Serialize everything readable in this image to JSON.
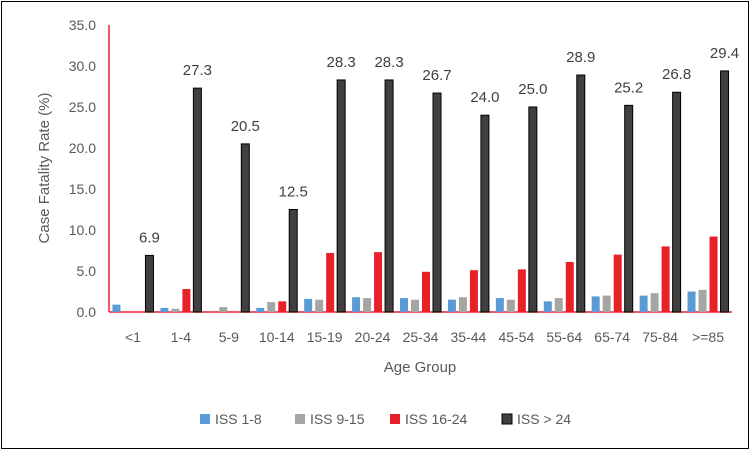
{
  "chart_data": {
    "type": "bar",
    "title": "",
    "xlabel": "Age Group",
    "ylabel": "Case Fatality Rate (%)",
    "ylim": [
      0,
      35
    ],
    "yticks": [
      "0.0",
      "5.0",
      "10.0",
      "15.0",
      "20.0",
      "25.0",
      "30.0",
      "35.0"
    ],
    "grid": false,
    "legend_position": "bottom",
    "categories": [
      "<1",
      "1-4",
      "5-9",
      "10-14",
      "15-19",
      "20-24",
      "25-34",
      "35-44",
      "45-54",
      "55-64",
      "65-74",
      "75-84",
      ">=85"
    ],
    "series": [
      {
        "name": "ISS 1-8",
        "color": "#5B9BD5",
        "values": [
          0.9,
          0.5,
          0.0,
          0.5,
          1.6,
          1.8,
          1.7,
          1.5,
          1.7,
          1.3,
          1.9,
          2.0,
          2.5
        ]
      },
      {
        "name": "ISS 9-15",
        "color": "#A5A5A5",
        "values": [
          0.0,
          0.4,
          0.6,
          1.2,
          1.5,
          1.7,
          1.5,
          1.8,
          1.5,
          1.7,
          2.0,
          2.3,
          2.7
        ]
      },
      {
        "name": "ISS 16-24",
        "color": "#E8202A",
        "values": [
          0.0,
          2.8,
          0.0,
          1.3,
          7.2,
          7.3,
          4.9,
          5.1,
          5.2,
          6.1,
          7.0,
          8.0,
          9.2
        ]
      },
      {
        "name": "ISS > 24",
        "color": "#404040",
        "values": [
          6.9,
          27.3,
          20.5,
          12.5,
          28.3,
          28.3,
          26.7,
          24.0,
          25.0,
          28.9,
          25.2,
          26.8,
          29.4
        ],
        "data_labels": [
          "6.9",
          "27.3",
          "20.5",
          "12.5",
          "28.3",
          "28.3",
          "26.7",
          "24.0",
          "25.0",
          "28.9",
          "25.2",
          "26.8",
          "29.4"
        ]
      }
    ]
  }
}
